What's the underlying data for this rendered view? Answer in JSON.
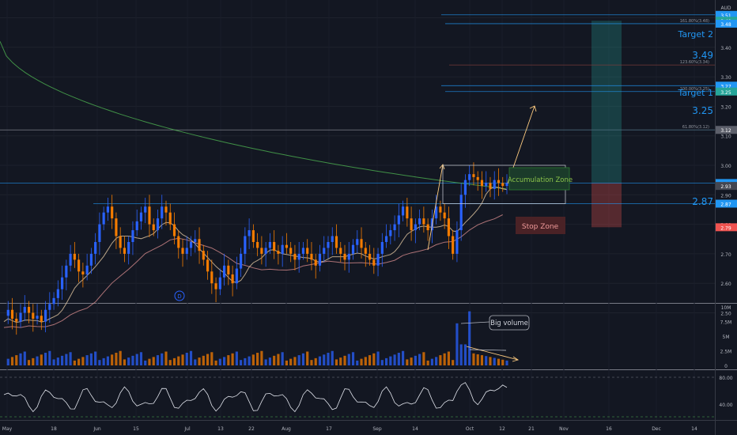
{
  "chart_data": {
    "type": "candlestick",
    "currency": "AUD",
    "price_ticks": [
      "3.60",
      "3.50",
      "3.40",
      "3.30",
      "3.20",
      "3.10",
      "3.00",
      "2.90",
      "2.80",
      "2.70",
      "2.60",
      "2.50"
    ],
    "x_ticks": [
      "May",
      "18",
      "Jun",
      "15",
      "Jul",
      "13",
      "22",
      "Aug",
      "17",
      "Sep",
      "14",
      "Oct",
      "12",
      "21",
      "Nov",
      "16",
      "Dec",
      "14"
    ],
    "ylim": [
      2.43,
      3.65
    ],
    "price_levels": [
      {
        "value": 3.51,
        "label": "3.51",
        "color": "#2196f3"
      },
      {
        "value": 3.49,
        "label": "3.49",
        "color": "#26a69a"
      },
      {
        "value": 3.48,
        "label": "3.48",
        "color": "#2196f3"
      },
      {
        "value": 3.27,
        "label": "3.27",
        "color": "#2196f3"
      },
      {
        "value": 3.25,
        "label": "3.25",
        "color": "#26a69a"
      },
      {
        "value": 3.12,
        "label": "3.12",
        "color": "#5d606b"
      },
      {
        "value": 2.94,
        "label": "2.94",
        "color": "#2196f3"
      },
      {
        "value": 2.93,
        "label": "2.93",
        "color": "#434651"
      },
      {
        "value": 2.87,
        "label": "2.87",
        "color": "#2196f3"
      },
      {
        "value": 2.79,
        "label": "2.79",
        "color": "#ef5350"
      }
    ],
    "fib_labels": [
      {
        "value": 3.48,
        "text": "161.80%(3.48)"
      },
      {
        "value": 3.34,
        "text": "123.60%(3.34)"
      },
      {
        "value": 3.25,
        "text": "100.00%(3.25)"
      },
      {
        "value": 3.12,
        "text": "61.80%(3.12)"
      }
    ],
    "annotations": {
      "target2": "Target 2",
      "target2_value": "3.49",
      "target1": "Target 1",
      "target1_value": "3.25",
      "stop_value": "2.87",
      "accumulation": "Accumulation Zone",
      "stop_zone": "Stop Zone",
      "big_volume": "Big volume",
      "dividend_marker": "D"
    },
    "volume_ticks": [
      "10M",
      "7.5M",
      "5M",
      "2.5M",
      "0"
    ],
    "volume_ylim": [
      0,
      10
    ],
    "rsi_ticks": [
      "80.00",
      "40.00"
    ],
    "rsi_ylim": [
      30,
      85
    ],
    "colors": {
      "up": "#2962ff",
      "down": "#f57c00",
      "ma_long": "#4caf50",
      "ma_mid": "#ef9a9a",
      "ma_short": "#ffe0b2",
      "background": "#131722"
    }
  }
}
